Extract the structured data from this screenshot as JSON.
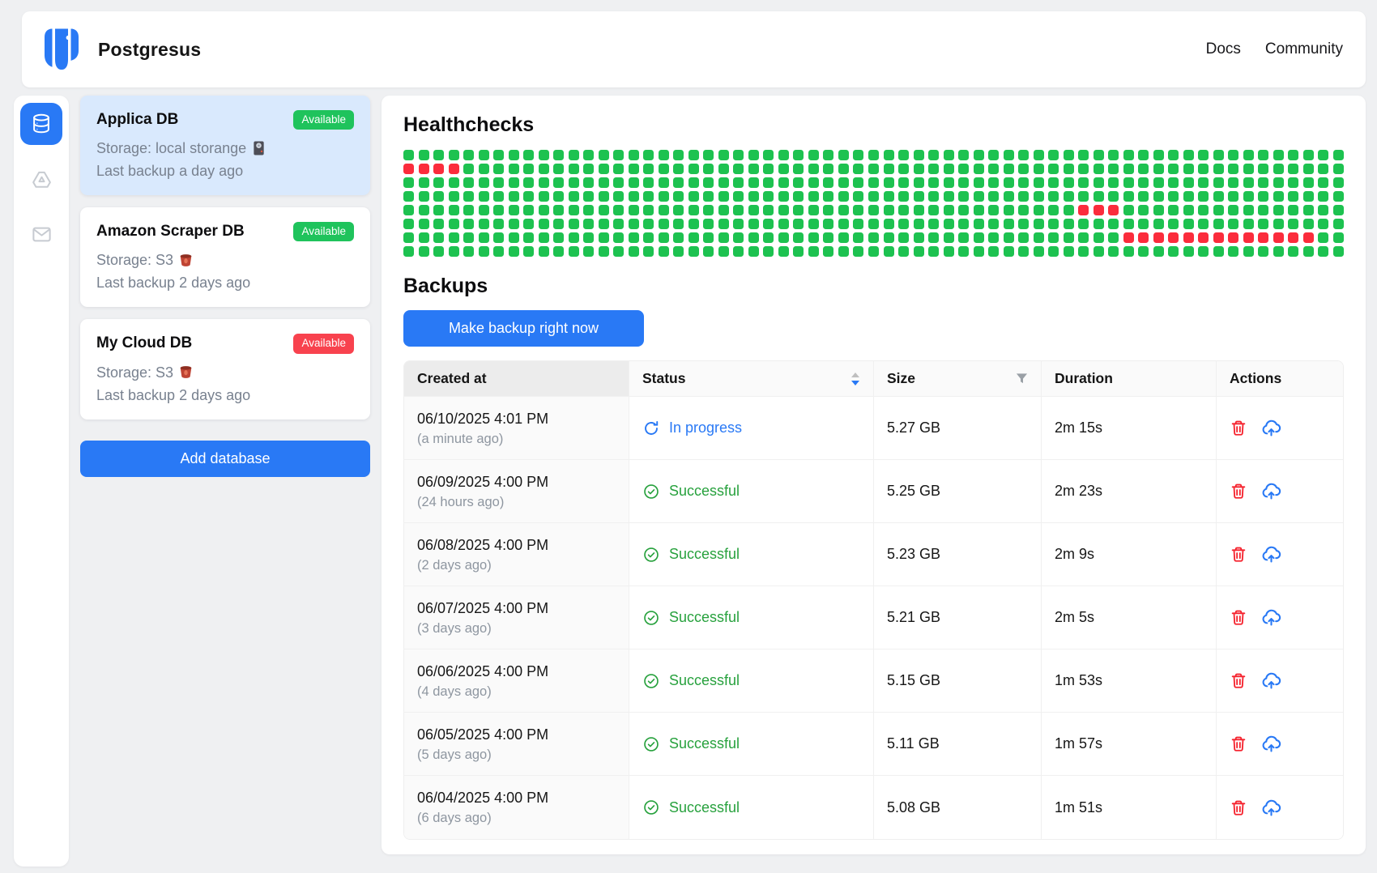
{
  "header": {
    "title": "Postgresus",
    "nav": [
      {
        "label": "Docs"
      },
      {
        "label": "Community"
      }
    ]
  },
  "sidebar": {
    "items": [
      {
        "id": "databases",
        "icon": "database-icon",
        "active": true
      },
      {
        "id": "storage",
        "icon": "drive-icon",
        "active": false
      },
      {
        "id": "notifications",
        "icon": "mail-icon",
        "active": false
      }
    ]
  },
  "databases": {
    "add_button_label": "Add database",
    "cards": [
      {
        "name": "Applica DB",
        "badge": "Available",
        "badge_color": "#1fc35c",
        "storage_line": "Storage: local storange",
        "storage_icon": "hard-drive-icon",
        "last_backup": "Last backup a day ago",
        "selected": true
      },
      {
        "name": "Amazon Scraper DB",
        "badge": "Available",
        "badge_color": "#1fc35c",
        "storage_line": "Storage: S3",
        "storage_icon": "s3-bucket-icon",
        "last_backup": "Last backup 2 days ago",
        "selected": false
      },
      {
        "name": "My Cloud DB",
        "badge": "Available",
        "badge_color": "#f8424e",
        "storage_line": "Storage: S3",
        "storage_icon": "s3-bucket-icon",
        "last_backup": "Last backup 2 days ago",
        "selected": false
      }
    ]
  },
  "healthchecks": {
    "title": "Healthchecks",
    "rows": 8,
    "cols": 63,
    "green_color": "#1dc250",
    "red_color": "#fb2c3c",
    "red_ranges": [
      {
        "row": 1,
        "from": 0,
        "to": 3
      },
      {
        "row": 4,
        "from": 45,
        "to": 47
      },
      {
        "row": 6,
        "from": 48,
        "to": 60
      }
    ]
  },
  "backups": {
    "title": "Backups",
    "make_backup_label": "Make backup right now",
    "table": {
      "columns": [
        "Created at",
        "Status",
        "Size",
        "Duration",
        "Actions"
      ],
      "rows": [
        {
          "created": "06/10/2025 4:01 PM",
          "relative": "(a minute ago)",
          "status": "In progress",
          "status_type": "in_progress",
          "size": "5.27 GB",
          "duration": "2m 15s"
        },
        {
          "created": "06/09/2025 4:00 PM",
          "relative": "(24 hours ago)",
          "status": "Successful",
          "status_type": "success",
          "size": "5.25 GB",
          "duration": "2m 23s"
        },
        {
          "created": "06/08/2025 4:00 PM",
          "relative": "(2 days ago)",
          "status": "Successful",
          "status_type": "success",
          "size": "5.23 GB",
          "duration": "2m 9s"
        },
        {
          "created": "06/07/2025 4:00 PM",
          "relative": "(3 days ago)",
          "status": "Successful",
          "status_type": "success",
          "size": "5.21 GB",
          "duration": "2m 5s"
        },
        {
          "created": "06/06/2025 4:00 PM",
          "relative": "(4 days ago)",
          "status": "Successful",
          "status_type": "success",
          "size": "5.15 GB",
          "duration": "1m 53s"
        },
        {
          "created": "06/05/2025 4:00 PM",
          "relative": "(5 days ago)",
          "status": "Successful",
          "status_type": "success",
          "size": "5.11 GB",
          "duration": "1m 57s"
        },
        {
          "created": "06/04/2025 4:00 PM",
          "relative": "(6 days ago)",
          "status": "Successful",
          "status_type": "success",
          "size": "5.08 GB",
          "duration": "1m 51s"
        }
      ]
    }
  },
  "colors": {
    "accent_blue": "#2979f5",
    "success_green": "#27a13d",
    "danger_red": "#f8424e",
    "trash_red": "#f5222d"
  }
}
